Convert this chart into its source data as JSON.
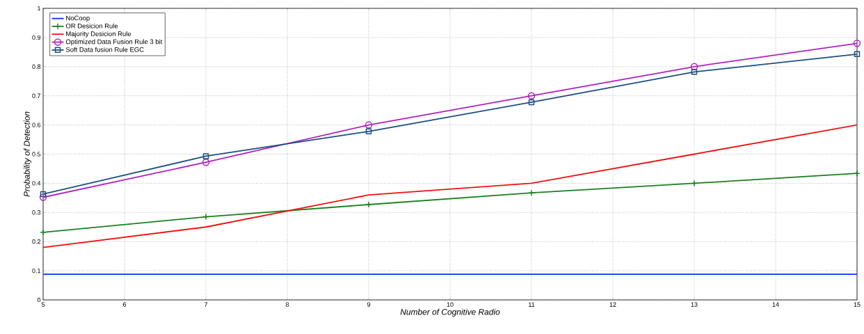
{
  "chart_data": {
    "type": "line",
    "xlabel": "Number of Cognitive Radio",
    "ylabel": "Probability of Detection",
    "x": [
      5,
      7,
      9,
      11,
      13,
      15
    ],
    "series": [
      {
        "name": "NoCoop",
        "color": "#0033ff",
        "marker": "none",
        "values": [
          0.088,
          0.088,
          0.088,
          0.088,
          0.088,
          0.088
        ]
      },
      {
        "name": "OR Desicion Rule",
        "color": "#1a8020",
        "marker": "cross",
        "values": [
          0.232,
          0.285,
          0.327,
          0.367,
          0.4,
          0.434
        ]
      },
      {
        "name": "Majority Desicion Rule",
        "color": "#ee1111",
        "marker": "none",
        "values": [
          0.18,
          0.25,
          0.36,
          0.4,
          0.5,
          0.6
        ]
      },
      {
        "name": "Optimized Data Fusion Rule 3 bit",
        "color": "#b020c0",
        "marker": "circle",
        "values": [
          0.352,
          0.472,
          0.6,
          0.7,
          0.8,
          0.88
        ]
      },
      {
        "name": "Soft Data fusion Rule EGC",
        "color": "#1a4f80",
        "marker": "square",
        "values": [
          0.363,
          0.493,
          0.578,
          0.678,
          0.782,
          0.843
        ]
      }
    ],
    "xlim": [
      5,
      15
    ],
    "xticks": [
      5,
      6,
      7,
      8,
      9,
      10,
      11,
      12,
      13,
      14,
      15
    ],
    "ylim": [
      0,
      1
    ],
    "yticks": [
      0,
      0.1,
      0.2,
      0.3,
      0.4,
      0.5,
      0.6,
      0.7,
      0.8,
      0.9,
      1
    ],
    "grid": true,
    "legend": "top left",
    "line_style": "solid"
  }
}
